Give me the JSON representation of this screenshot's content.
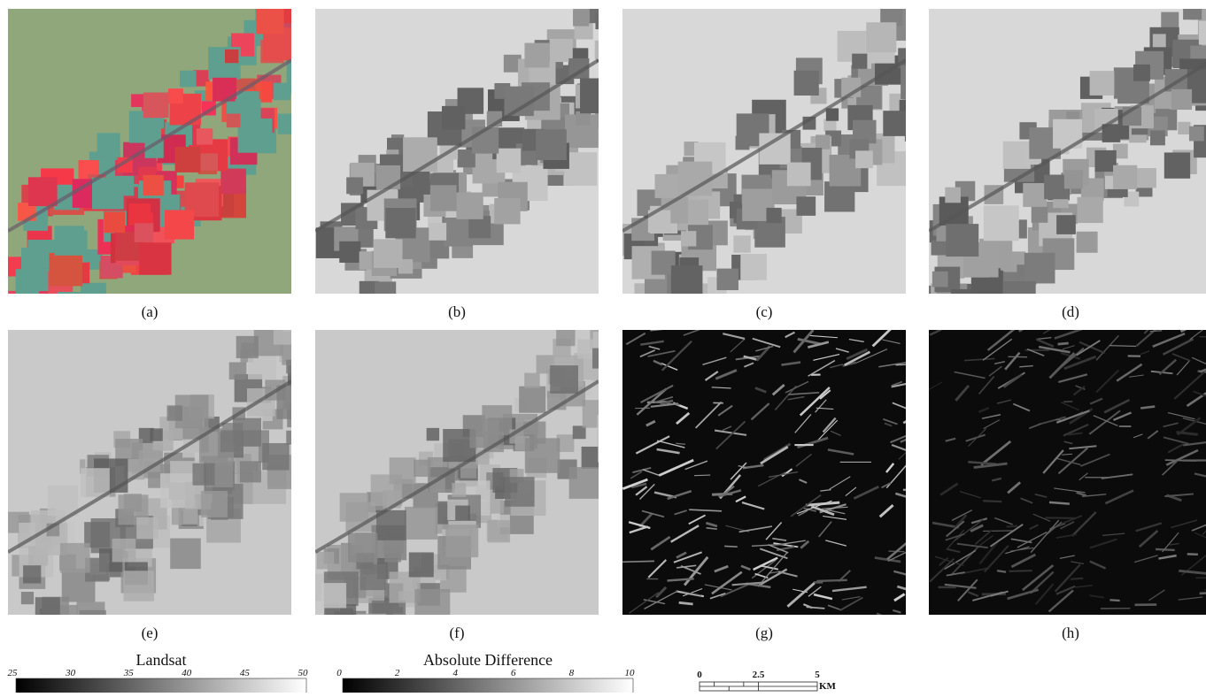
{
  "panels": [
    {
      "label": "(a)"
    },
    {
      "label": "(b)"
    },
    {
      "label": "(c)"
    },
    {
      "label": "(d)"
    },
    {
      "label": "(e)"
    },
    {
      "label": "(f)"
    },
    {
      "label": "(g)"
    },
    {
      "label": "(h)"
    }
  ],
  "colorbars": [
    {
      "title": "Landsat",
      "ticks": [
        25,
        30,
        35,
        40,
        45,
        50
      ]
    },
    {
      "title": "Absolute Difference",
      "ticks": [
        0,
        2,
        4,
        6,
        8,
        10
      ]
    }
  ],
  "scale_bar": {
    "ticks": [
      0,
      2.5,
      5
    ],
    "unit": "KM"
  }
}
